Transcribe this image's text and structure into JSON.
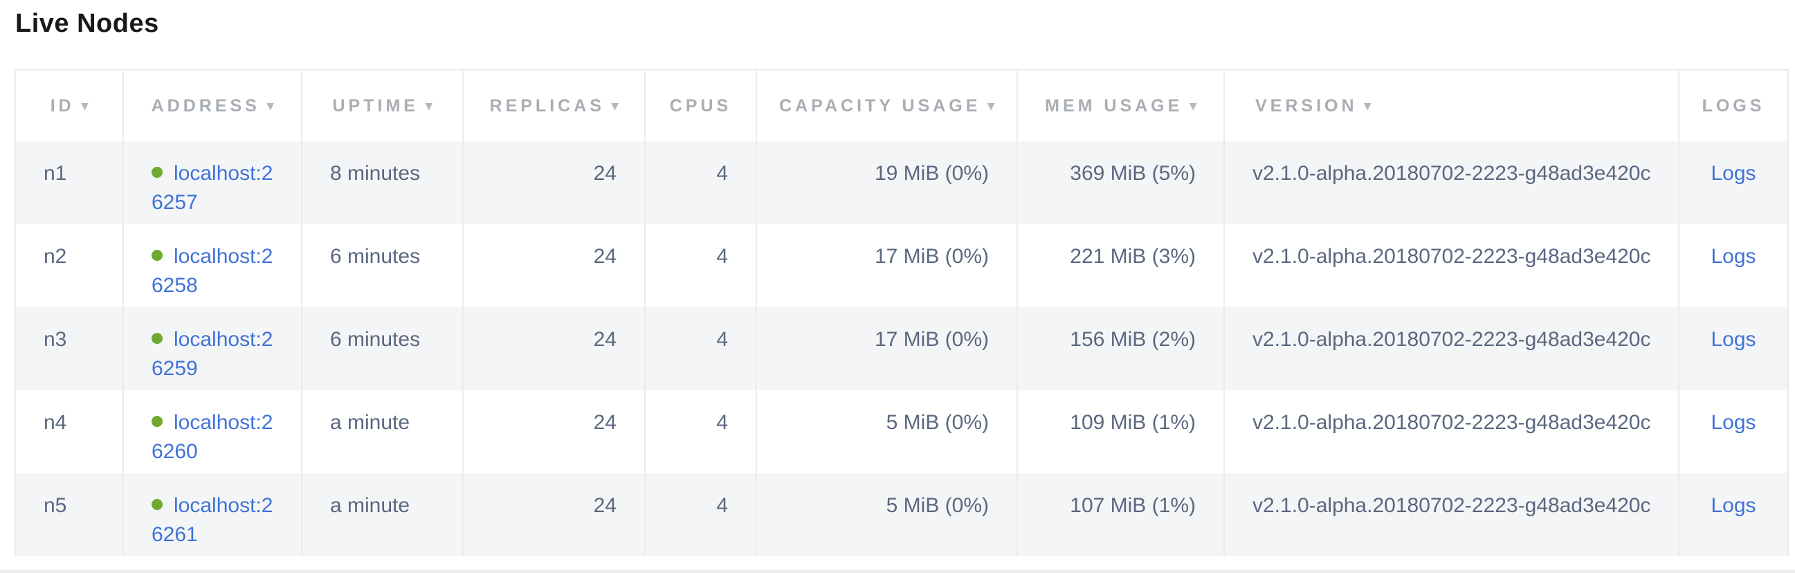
{
  "page": {
    "title": "Live Nodes"
  },
  "colors": {
    "link_blue": "#3f72d9",
    "live_dot_green": "#6eaa30",
    "header_text_gray": "#a9aeb4",
    "body_text_slate": "#5b6780",
    "row_stripe_gray": "#f4f5f6",
    "divider_gray": "#eaebec"
  },
  "table": {
    "sort_arrow_glyph": "▾",
    "columns": [
      {
        "key": "id",
        "label": "ID",
        "sortable": true
      },
      {
        "key": "address",
        "label": "ADDRESS",
        "sortable": true
      },
      {
        "key": "uptime",
        "label": "UPTIME",
        "sortable": true
      },
      {
        "key": "replicas",
        "label": "REPLICAS",
        "sortable": true
      },
      {
        "key": "cpus",
        "label": "CPUS",
        "sortable": false
      },
      {
        "key": "capacity",
        "label": "CAPACITY USAGE",
        "sortable": true
      },
      {
        "key": "mem",
        "label": "MEM USAGE",
        "sortable": true
      },
      {
        "key": "version",
        "label": "VERSION",
        "sortable": true
      },
      {
        "key": "logs",
        "label": "LOGS",
        "sortable": false
      }
    ],
    "rows": [
      {
        "id": "n1",
        "status": "live",
        "address": "localhost:26257",
        "uptime": "8 minutes",
        "replicas": "24",
        "cpus": "4",
        "capacity": "19 MiB (0%)",
        "mem": "369 MiB (5%)",
        "version": "v2.1.0-alpha.20180702-2223-g48ad3e420c",
        "logs": "Logs"
      },
      {
        "id": "n2",
        "status": "live",
        "address": "localhost:26258",
        "uptime": "6 minutes",
        "replicas": "24",
        "cpus": "4",
        "capacity": "17 MiB (0%)",
        "mem": "221 MiB (3%)",
        "version": "v2.1.0-alpha.20180702-2223-g48ad3e420c",
        "logs": "Logs"
      },
      {
        "id": "n3",
        "status": "live",
        "address": "localhost:26259",
        "uptime": "6 minutes",
        "replicas": "24",
        "cpus": "4",
        "capacity": "17 MiB (0%)",
        "mem": "156 MiB (2%)",
        "version": "v2.1.0-alpha.20180702-2223-g48ad3e420c",
        "logs": "Logs"
      },
      {
        "id": "n4",
        "status": "live",
        "address": "localhost:26260",
        "uptime": "a minute",
        "replicas": "24",
        "cpus": "4",
        "capacity": "5 MiB (0%)",
        "mem": "109 MiB (1%)",
        "version": "v2.1.0-alpha.20180702-2223-g48ad3e420c",
        "logs": "Logs"
      },
      {
        "id": "n5",
        "status": "live",
        "address": "localhost:26261",
        "uptime": "a minute",
        "replicas": "24",
        "cpus": "4",
        "capacity": "5 MiB (0%)",
        "mem": "107 MiB (1%)",
        "version": "v2.1.0-alpha.20180702-2223-g48ad3e420c",
        "logs": "Logs"
      }
    ]
  }
}
